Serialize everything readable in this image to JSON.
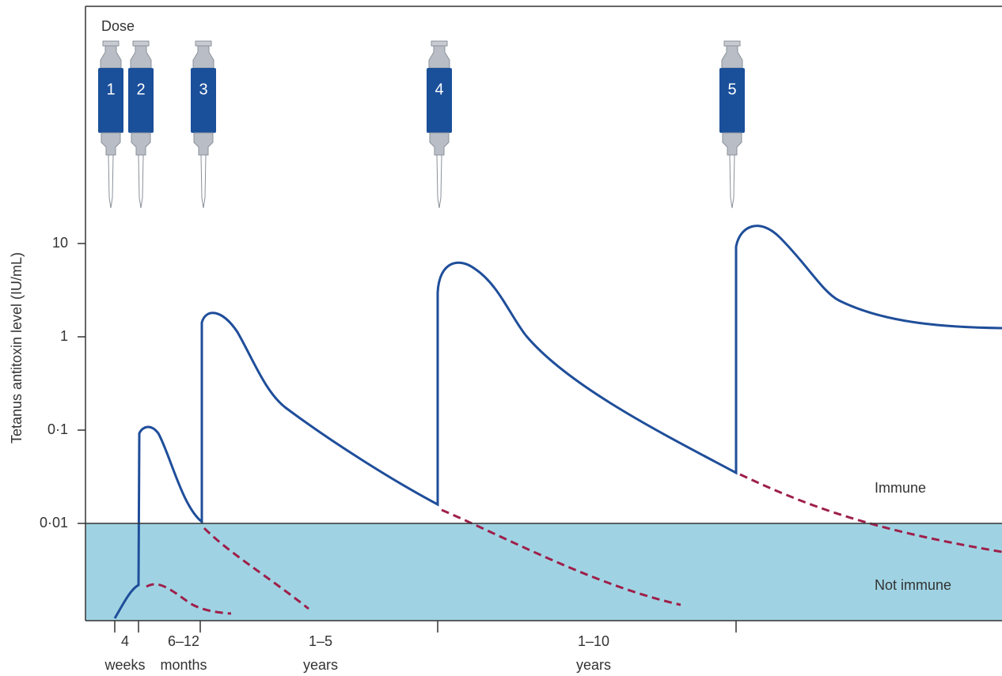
{
  "chart_data": {
    "type": "line",
    "y_label": "Tetanus antitoxin level (IU/mL)",
    "yscale": "log",
    "ylim": [
      0.001,
      1000
    ],
    "yticks": [
      {
        "value": 0.01,
        "label": "0·01"
      },
      {
        "value": 0.1,
        "label": "0·1"
      },
      1,
      10
    ],
    "dose_title": "Dose",
    "doses": [
      "1",
      "2",
      "3",
      "4",
      "5"
    ],
    "zones": [
      "Immune",
      "Not immune"
    ],
    "x_interval_labels": [
      [
        "4",
        "weeks"
      ],
      [
        "6–12",
        "months"
      ],
      [
        "1–5",
        "years"
      ],
      [
        "1–10",
        "years"
      ]
    ]
  }
}
